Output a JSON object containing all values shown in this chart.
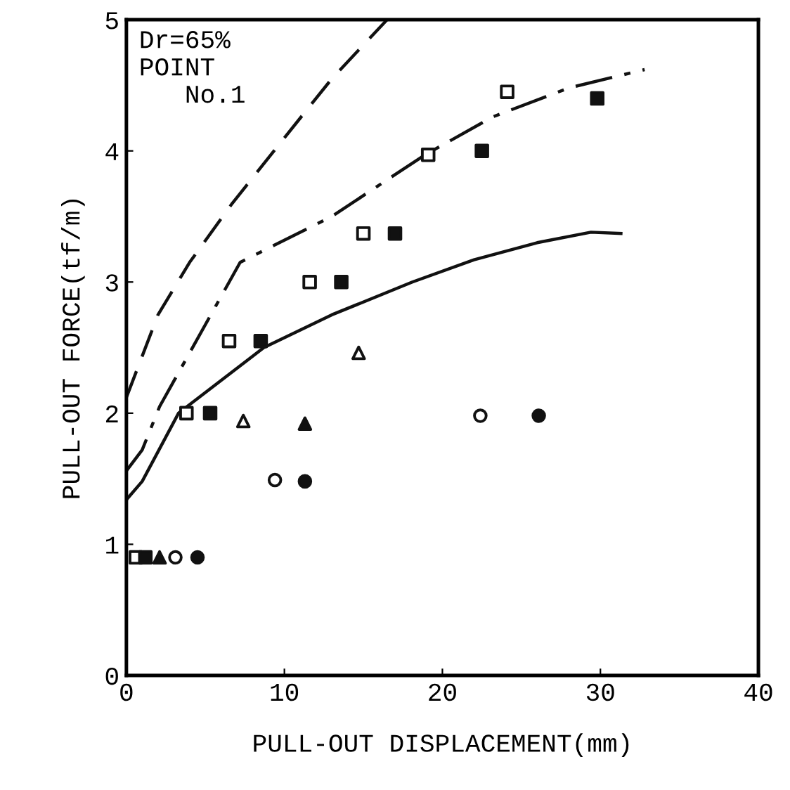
{
  "chart_data": {
    "type": "scatter",
    "xlabel": "PULL-OUT DISPLACEMENT(mm)",
    "ylabel": "PULL-OUT FORCE(tf/m)",
    "annotations": [
      "Dr=65%\nPOINT\n   No.1"
    ],
    "xlim": [
      0,
      40
    ],
    "xticks": [
      0,
      10,
      20,
      30,
      40
    ],
    "ylim": [
      0,
      5
    ],
    "yticks": [
      0,
      1,
      2,
      3,
      4,
      5
    ],
    "grid": false,
    "legend": false,
    "series": [
      {
        "type": "line",
        "line_style": "dashed",
        "color": "#111111",
        "marker": "none",
        "x": [
          0,
          2,
          4,
          6.7,
          10,
          13,
          16.5
        ],
        "values": [
          2.12,
          2.75,
          3.15,
          3.6,
          4.1,
          4.55,
          5.0
        ]
      },
      {
        "type": "line",
        "line_style": "dashdot",
        "color": "#111111",
        "marker": "none",
        "x": [
          0,
          1,
          2.1,
          7.2,
          13,
          18.9,
          23.2,
          28,
          32.8
        ],
        "values": [
          1.56,
          1.72,
          2.05,
          3.15,
          3.5,
          3.97,
          4.26,
          4.48,
          4.62
        ]
      },
      {
        "type": "line",
        "line_style": "solid",
        "color": "#111111",
        "marker": "none",
        "x": [
          0,
          1,
          3.3,
          8.7,
          13,
          18.1,
          22,
          26,
          29.4,
          31.3
        ],
        "values": [
          1.34,
          1.48,
          2.0,
          2.5,
          2.75,
          3.0,
          3.17,
          3.3,
          3.38,
          3.37
        ]
      },
      {
        "marker": "square",
        "color": "#ffffff",
        "x": [
          0.6,
          3.8,
          6.5,
          11.6,
          15.0,
          19.1,
          24.1
        ],
        "values": [
          0.9,
          2.0,
          2.55,
          3.0,
          3.37,
          3.97,
          4.45
        ]
      },
      {
        "marker": "square",
        "color": "#111111",
        "x": [
          1.2,
          5.3,
          8.5,
          13.6,
          17.0,
          22.5,
          29.8
        ],
        "values": [
          0.9,
          2.0,
          2.55,
          3.0,
          3.37,
          4.0,
          4.4
        ]
      },
      {
        "marker": "triangle",
        "color": "#ffffff",
        "x": [
          7.4,
          14.7
        ],
        "values": [
          1.94,
          2.46
        ]
      },
      {
        "marker": "triangle",
        "color": "#111111",
        "x": [
          2.1,
          11.3
        ],
        "values": [
          0.9,
          1.92
        ]
      },
      {
        "marker": "circle",
        "color": "#ffffff",
        "x": [
          3.1,
          9.4,
          22.4
        ],
        "values": [
          0.9,
          1.49,
          1.98
        ]
      },
      {
        "marker": "circle",
        "color": "#111111",
        "x": [
          4.5,
          11.3,
          26.1
        ],
        "values": [
          0.9,
          1.48,
          1.98
        ]
      }
    ]
  }
}
